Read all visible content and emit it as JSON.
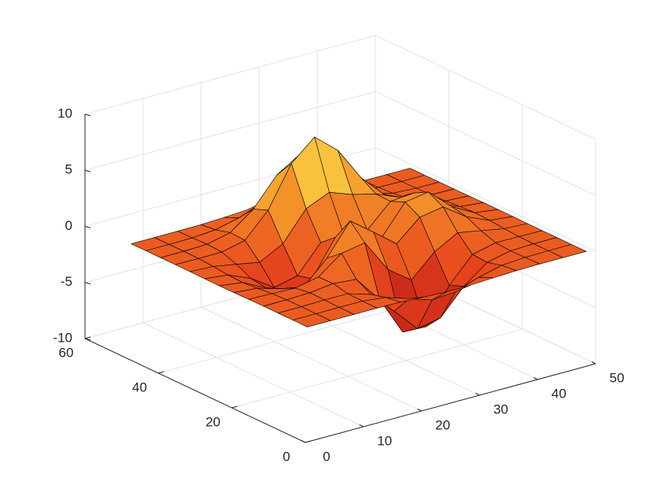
{
  "chart_data": {
    "type": "surface",
    "x": [
      1,
      5,
      9,
      13,
      17,
      21,
      25,
      29,
      33,
      37,
      41,
      45,
      49
    ],
    "y": [
      1,
      5,
      9,
      13,
      17,
      21,
      25,
      29,
      33,
      37,
      41,
      45,
      49
    ],
    "z": [
      [
        0,
        0,
        0,
        0,
        -0.03,
        -0.14,
        -0.24,
        -0.22,
        -0.11,
        -0.03,
        0,
        0,
        0
      ],
      [
        0,
        0,
        0.01,
        0,
        -0.23,
        -0.91,
        -1.57,
        -1.41,
        -0.69,
        -0.18,
        -0.03,
        0,
        0
      ],
      [
        0,
        0.01,
        0.05,
        0.05,
        -0.59,
        -2.63,
        -4.75,
        -4.34,
        -2.1,
        -0.53,
        -0.06,
        0,
        0
      ],
      [
        0,
        0.01,
        0.08,
        0.33,
        0.15,
        -2.19,
        -5.68,
        -5.76,
        -2.64,
        -0.44,
        0.04,
        0.03,
        0
      ],
      [
        -0.01,
        -0.06,
        -0.13,
        0.3,
        1.86,
        2.22,
        -0.72,
        -2.22,
        -0.27,
        0.88,
        0.5,
        0.11,
        0.01
      ],
      [
        -0.03,
        -0.2,
        -0.8,
        -1.21,
        0.8,
        3.55,
        2,
        0.39,
        2.2,
        2.56,
        1.12,
        0.24,
        0.03
      ],
      [
        -0.04,
        -0.3,
        -1.33,
        -2.77,
        -1.65,
        1.48,
        0.98,
        0.37,
        2.94,
        3.27,
        1.41,
        0.3,
        0.03
      ],
      [
        -0.03,
        -0.25,
        -1.12,
        -2.49,
        -2,
        0.39,
        0.46,
        0.38,
        2.38,
        2.56,
        1.09,
        0.23,
        0.03
      ],
      [
        -0.01,
        -0.11,
        -0.48,
        -0.86,
        0.23,
        2.79,
        3.69,
        2.93,
        2.43,
        1.58,
        0.58,
        0.11,
        0.01
      ],
      [
        0,
        -0.02,
        -0.01,
        0.48,
        2.61,
        6.2,
        8,
        6.25,
        3.25,
        1.19,
        0.29,
        0.05,
        0
      ],
      [
        0,
        0.01,
        0.08,
        0.55,
        2.09,
        4.55,
        5.85,
        4.56,
        2.21,
        0.68,
        0.13,
        0.02,
        0
      ],
      [
        0,
        0,
        0.03,
        0.19,
        0.69,
        1.47,
        1.88,
        1.47,
        0.7,
        0.2,
        0.04,
        0,
        0
      ],
      [
        0,
        0,
        0.01,
        0.03,
        0.11,
        0.23,
        0.3,
        0.23,
        0.11,
        0.03,
        0.01,
        0,
        0
      ]
    ],
    "xlim": [
      0,
      50
    ],
    "ylim": [
      0,
      60
    ],
    "zlim": [
      -10,
      10
    ],
    "xticks": [
      0,
      10,
      20,
      30,
      40,
      50
    ],
    "yticks": [
      0,
      20,
      40,
      60
    ],
    "zticks": [
      -10,
      -5,
      0,
      5,
      10
    ],
    "grid": true,
    "edge_color": "#000000",
    "colormap": [
      "#b41414",
      "#e8461e",
      "#f59a2a",
      "#ffff5a"
    ]
  }
}
